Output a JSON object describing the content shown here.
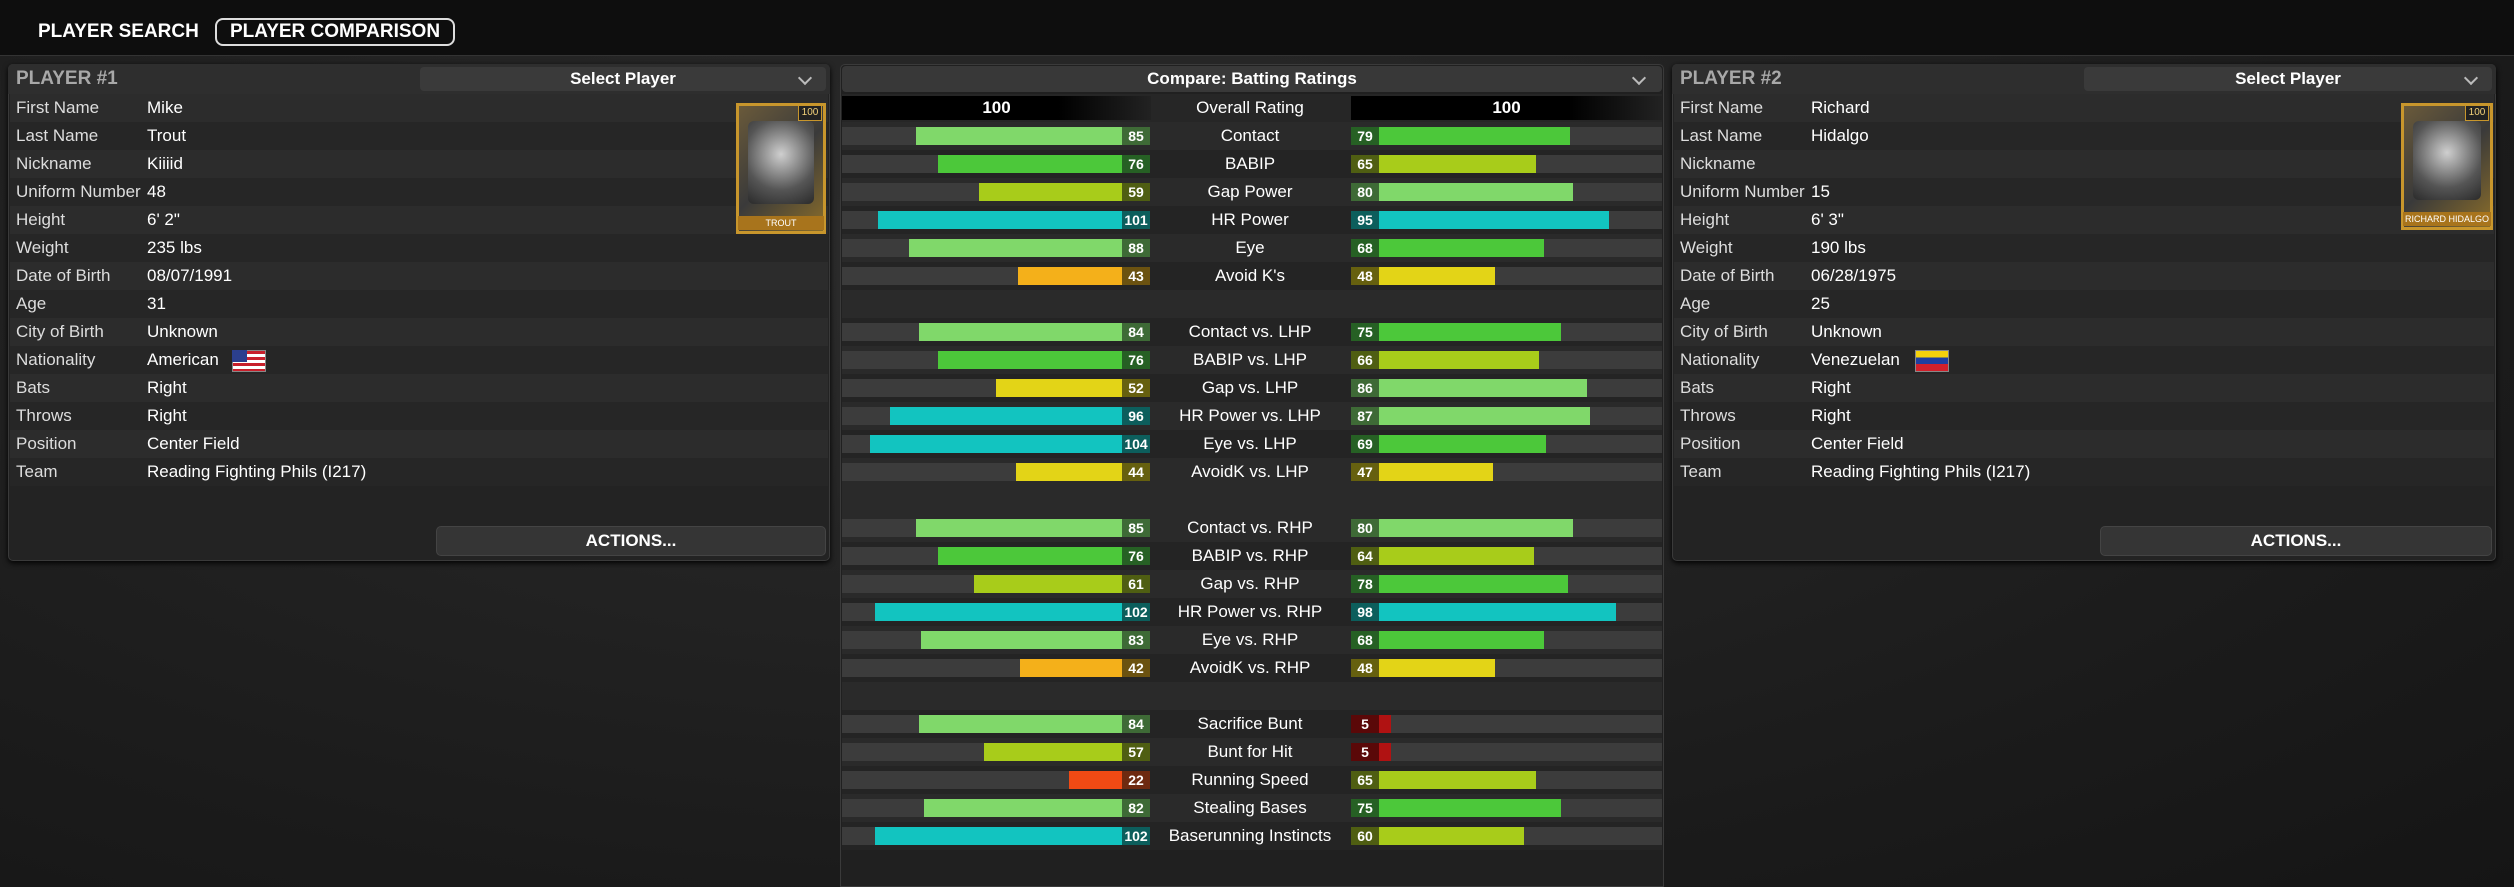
{
  "tabs": [
    "PLAYER SEARCH",
    "PLAYER COMPARISON"
  ],
  "player1": {
    "title": "PLAYER #1",
    "select": "Select Player",
    "card": {
      "badge": 100,
      "name": "TROUT"
    },
    "fields": [
      {
        "label": "First Name",
        "value": "Mike"
      },
      {
        "label": "Last Name",
        "value": "Trout"
      },
      {
        "label": "Nickname",
        "value": "Kiiiid"
      },
      {
        "label": "Uniform Number",
        "value": 48
      },
      {
        "label": "Height",
        "value": "6' 2\""
      },
      {
        "label": "Weight",
        "value": "235 lbs"
      },
      {
        "label": "Date of Birth",
        "value": "08/07/1991"
      },
      {
        "label": "Age",
        "value": 31
      },
      {
        "label": "City of Birth",
        "value": "Unknown"
      },
      {
        "label": "Nationality",
        "value": "American",
        "flag": "us"
      },
      {
        "label": "Bats",
        "value": "Right"
      },
      {
        "label": "Throws",
        "value": "Right"
      },
      {
        "label": "Position",
        "value": "Center Field"
      },
      {
        "label": "Team",
        "value": "Reading Fighting Phils (I217)"
      }
    ],
    "actions": "ACTIONS..."
  },
  "player2": {
    "title": "PLAYER #2",
    "select": "Select Player",
    "card": {
      "badge": 100,
      "name": "RICHARD HIDALGO"
    },
    "fields": [
      {
        "label": "First Name",
        "value": "Richard"
      },
      {
        "label": "Last Name",
        "value": "Hidalgo"
      },
      {
        "label": "Nickname"
      },
      {
        "label": "Uniform Number",
        "value": 15
      },
      {
        "label": "Height",
        "value": "6' 3\""
      },
      {
        "label": "Weight",
        "value": "190 lbs"
      },
      {
        "label": "Date of Birth",
        "value": "06/28/1975"
      },
      {
        "label": "Age",
        "value": 25
      },
      {
        "label": "City of Birth",
        "value": "Unknown"
      },
      {
        "label": "Nationality",
        "value": "Venezuelan",
        "flag": "ve"
      },
      {
        "label": "Bats",
        "value": "Right"
      },
      {
        "label": "Throws",
        "value": "Right"
      },
      {
        "label": "Position",
        "value": "Center Field"
      },
      {
        "label": "Team",
        "value": "Reading Fighting Phils (I217)"
      }
    ],
    "actions": "ACTIONS..."
  },
  "compare": {
    "title": "Compare: Batting Ratings",
    "overall": {
      "label": "Overall Rating",
      "p1": 100,
      "p2": 100
    },
    "groups": [
      [
        {
          "label": "Contact",
          "p1": 85,
          "p2": 79
        },
        {
          "label": "BABIP",
          "p1": 76,
          "p2": 65
        },
        {
          "label": "Gap Power",
          "p1": 59,
          "p2": 80
        },
        {
          "label": "HR Power",
          "p1": 101,
          "p2": 95
        },
        {
          "label": "Eye",
          "p1": 88,
          "p2": 68
        },
        {
          "label": "Avoid K's",
          "p1": 43,
          "p2": 48
        }
      ],
      [
        {
          "label": "Contact vs. LHP",
          "p1": 84,
          "p2": 75
        },
        {
          "label": "BABIP vs. LHP",
          "p1": 76,
          "p2": 66
        },
        {
          "label": "Gap vs. LHP",
          "p1": 52,
          "p2": 86
        },
        {
          "label": "HR Power vs. LHP",
          "p1": 96,
          "p2": 87
        },
        {
          "label": "Eye vs. LHP",
          "p1": 104,
          "p2": 69
        },
        {
          "label": "AvoidK vs. LHP",
          "p1": 44,
          "p2": 47
        }
      ],
      [
        {
          "label": "Contact vs. RHP",
          "p1": 85,
          "p2": 80
        },
        {
          "label": "BABIP vs. RHP",
          "p1": 76,
          "p2": 64
        },
        {
          "label": "Gap vs. RHP",
          "p1": 61,
          "p2": 78
        },
        {
          "label": "HR Power vs. RHP",
          "p1": 102,
          "p2": 98
        },
        {
          "label": "Eye vs. RHP",
          "p1": 83,
          "p2": 68
        },
        {
          "label": "AvoidK vs. RHP",
          "p1": 42,
          "p2": 48
        }
      ],
      [
        {
          "label": "Sacrifice Bunt",
          "p1": 84,
          "p2": 5
        },
        {
          "label": "Bunt for Hit",
          "p1": 57,
          "p2": 5
        },
        {
          "label": "Running Speed",
          "p1": 22,
          "p2": 65
        },
        {
          "label": "Stealing Bases",
          "p1": 82,
          "p2": 75
        },
        {
          "label": "Baserunning Instincts",
          "p1": 102,
          "p2": 60
        }
      ]
    ]
  }
}
